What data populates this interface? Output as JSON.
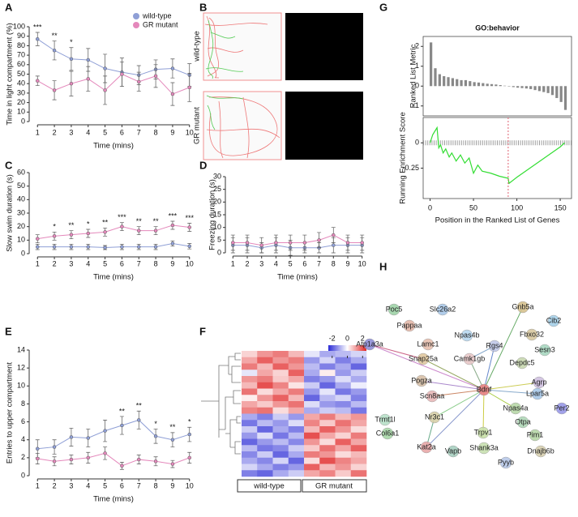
{
  "panel_labels": [
    "A",
    "B",
    "C",
    "D",
    "E",
    "F",
    "G",
    "H"
  ],
  "tracks": {
    "labels": [
      "wild-type",
      "GR mutant"
    ]
  },
  "network": {
    "nodes": [
      "Poc5",
      "Slc26a2",
      "Gnb5a",
      "Cib2",
      "Pappaa",
      "Npas4b",
      "Fbxo32",
      "Atp1a3a",
      "Lamc1",
      "Rgs4",
      "Sesn3",
      "Snap25a",
      "Camk1gb",
      "Depdc5",
      "Agrp",
      "Pogza",
      "Bdnf",
      "Lpar5a",
      "Scn8aa",
      "Npas4a",
      "Per2",
      "Trmt1l",
      "Nr3c1",
      "Otpa",
      "Col6a1",
      "Trpv1",
      "Pim1",
      "Kat2a",
      "Vapb",
      "Shank3a",
      "Dnajb6b",
      "Pyyb"
    ]
  },
  "chart_data": [
    {
      "type": "line",
      "ylabel": "Time in light compartment (%)",
      "xlabel": "Time (mins)",
      "x": [
        1,
        2,
        3,
        4,
        5,
        6,
        7,
        8,
        9,
        10
      ],
      "xlim": [
        0.7,
        10.3
      ],
      "xticks": [
        1,
        2,
        3,
        4,
        5,
        6,
        7,
        8,
        9,
        10
      ],
      "ylim": [
        0,
        100
      ],
      "yticks": [
        0,
        10,
        20,
        30,
        40,
        50,
        60,
        70,
        80,
        90,
        100
      ],
      "legend": "upper right",
      "series": [
        {
          "name": "wild-type",
          "color": "#8f9fd6",
          "values": [
            87,
            75,
            66,
            65,
            56,
            52,
            49,
            55,
            56,
            49
          ],
          "errors": [
            7,
            10,
            12,
            12,
            15,
            15,
            10,
            10,
            10,
            12
          ]
        },
        {
          "name": "GR mutant",
          "color": "#e488bb",
          "values": [
            43,
            33,
            40,
            45,
            33,
            50,
            42,
            48,
            29,
            36
          ],
          "errors": [
            5,
            10,
            13,
            13,
            15,
            13,
            10,
            12,
            12,
            15
          ]
        }
      ],
      "annotations": [
        {
          "x": 1,
          "text": "***"
        },
        {
          "x": 2,
          "text": "**"
        },
        {
          "x": 3,
          "text": "*"
        }
      ]
    },
    {
      "type": "line",
      "ylabel": "Slow swim duration (s)",
      "xlabel": "Time (mins)",
      "x": [
        1,
        2,
        3,
        4,
        5,
        6,
        7,
        8,
        9,
        10
      ],
      "xlim": [
        0.7,
        10.3
      ],
      "xticks": [
        1,
        2,
        3,
        4,
        5,
        6,
        7,
        8,
        9,
        10
      ],
      "ylim": [
        0,
        60
      ],
      "yticks": [
        0,
        10,
        20,
        30,
        40,
        50,
        60
      ],
      "series": [
        {
          "name": "wild-type",
          "color": "#8f9fd6",
          "values": [
            5,
            5,
            5,
            5,
            4.5,
            5,
            5,
            5,
            7.5,
            5.5
          ],
          "errors": [
            2,
            2,
            2,
            2,
            1.5,
            2,
            2,
            2,
            2,
            2
          ]
        },
        {
          "name": "GR mutant",
          "color": "#e488bb",
          "values": [
            11,
            13,
            14,
            15,
            16,
            20,
            17,
            17,
            21,
            19.5
          ],
          "errors": [
            3,
            3,
            3,
            3,
            3,
            3,
            3,
            3,
            3,
            3
          ]
        }
      ],
      "annotations": [
        {
          "x": 2,
          "text": "*"
        },
        {
          "x": 3,
          "text": "**"
        },
        {
          "x": 4,
          "text": "*"
        },
        {
          "x": 5,
          "text": "**"
        },
        {
          "x": 6,
          "text": "***"
        },
        {
          "x": 7,
          "text": "**"
        },
        {
          "x": 8,
          "text": "**"
        },
        {
          "x": 9,
          "text": "***"
        },
        {
          "x": 10,
          "text": "***"
        }
      ]
    },
    {
      "type": "line",
      "ylabel": "Freezing duration (s)",
      "xlabel": "Time (mins)",
      "x": [
        1,
        2,
        3,
        4,
        5,
        6,
        7,
        8,
        9,
        10
      ],
      "xlim": [
        0.7,
        10.3
      ],
      "xticks": [
        1,
        2,
        3,
        4,
        5,
        6,
        7,
        8,
        9,
        10
      ],
      "ylim": [
        0,
        30
      ],
      "yticks": [
        0,
        5,
        10,
        15,
        20,
        25,
        30
      ],
      "series": [
        {
          "name": "wild-type",
          "color": "#8f9fd6",
          "values": [
            3,
            3,
            2,
            3,
            2,
            2,
            2,
            3,
            3,
            3
          ],
          "errors": [
            3,
            3,
            2,
            3,
            3,
            2,
            2,
            3,
            3,
            3
          ]
        },
        {
          "name": "GR mutant",
          "color": "#e488bb",
          "values": [
            4,
            4,
            3,
            4,
            4,
            4,
            5,
            7,
            4,
            4
          ],
          "errors": [
            3,
            3,
            3,
            3,
            3,
            3,
            3,
            3,
            3,
            3
          ]
        }
      ],
      "annotations": []
    },
    {
      "type": "line",
      "ylabel": "Entries to upper compartment",
      "xlabel": "Time (mins)",
      "x": [
        1,
        2,
        3,
        4,
        5,
        6,
        7,
        8,
        9,
        10
      ],
      "xlim": [
        0.7,
        10.3
      ],
      "xticks": [
        1,
        2,
        3,
        4,
        5,
        6,
        7,
        8,
        9,
        10
      ],
      "ylim": [
        0,
        14
      ],
      "yticks": [
        0,
        2,
        4,
        6,
        8,
        10,
        12,
        14
      ],
      "series": [
        {
          "name": "wild-type",
          "color": "#8f9fd6",
          "values": [
            3,
            3.2,
            4.3,
            4.2,
            5,
            5.6,
            6.2,
            4.4,
            4,
            4.6
          ],
          "errors": [
            1,
            0.8,
            1,
            1,
            1.2,
            1,
            1,
            0.8,
            0.8,
            0.8
          ]
        },
        {
          "name": "GR mutant",
          "color": "#e488bb",
          "values": [
            1.9,
            1.6,
            1.8,
            2,
            2.5,
            1.1,
            1.8,
            1.6,
            1.3,
            2
          ],
          "errors": [
            0.6,
            0.5,
            0.5,
            0.6,
            0.7,
            0.4,
            0.5,
            0.5,
            0.4,
            0.6
          ]
        }
      ],
      "annotations": [
        {
          "x": 6,
          "text": "**"
        },
        {
          "x": 7,
          "text": "**"
        },
        {
          "x": 8,
          "text": "*"
        },
        {
          "x": 9,
          "text": "**"
        },
        {
          "x": 10,
          "text": "*"
        }
      ]
    },
    {
      "type": "bar",
      "title": "GO:behavior",
      "ylabel": "Ranked List Metric",
      "color": "#888888",
      "x": [
        1,
        6,
        11,
        16,
        21,
        26,
        31,
        36,
        41,
        46,
        51,
        56,
        61,
        66,
        71,
        76,
        81,
        86,
        91,
        96,
        101,
        106,
        111,
        116,
        121,
        126,
        131,
        136,
        141,
        146,
        151,
        156
      ],
      "values": [
        2.2,
        0.9,
        0.6,
        0.5,
        0.45,
        0.4,
        0.35,
        0.3,
        0.3,
        0.25,
        0.2,
        0.18,
        0.15,
        0.12,
        0.1,
        0.08,
        0.05,
        0.02,
        -0.02,
        -0.05,
        -0.08,
        -0.1,
        -0.12,
        -0.15,
        -0.2,
        -0.25,
        -0.3,
        -0.35,
        -0.45,
        -0.6,
        -0.8,
        -1.2
      ],
      "xlim": [
        -8,
        163
      ],
      "ylim": [
        -1.5,
        2.5
      ],
      "yticks": [
        -1,
        0,
        1,
        2
      ]
    },
    {
      "type": "line",
      "ylabel": "Running Enrichment Score",
      "xlabel": "Position in the Ranked List of Genes",
      "x": [
        0,
        3,
        8,
        10,
        12,
        15,
        18,
        22,
        25,
        30,
        35,
        40,
        45,
        50,
        55,
        60,
        70,
        80,
        90,
        91,
        100,
        110,
        120,
        130,
        140,
        150,
        155
      ],
      "series": [
        {
          "name": null,
          "color": "#33dd33",
          "values": [
            0,
            0.08,
            0.15,
            -0.05,
            -0.02,
            -0.1,
            -0.06,
            -0.14,
            -0.1,
            -0.18,
            -0.12,
            -0.2,
            -0.15,
            -0.3,
            -0.22,
            -0.28,
            -0.3,
            -0.33,
            -0.35,
            -0.4,
            -0.34,
            -0.28,
            -0.22,
            -0.16,
            -0.1,
            -0.04,
            0
          ]
        }
      ],
      "vline_x": 90,
      "xlim": [
        -8,
        163
      ],
      "xticks": [
        0,
        50,
        100,
        150
      ],
      "ylim": [
        -0.55,
        0.25
      ],
      "yticks": [
        0,
        -0.25
      ]
    },
    {
      "type": "heatmap",
      "groups": [
        "wild-type",
        "GR mutant"
      ],
      "clim": [
        -2.5,
        2.5
      ],
      "colorbar_ticks": [
        -2,
        0,
        2
      ],
      "values": [
        [
          0.5,
          1.2,
          1.5,
          0.8,
          -0.3,
          -1,
          -0.8,
          -0.5
        ],
        [
          1,
          1.8,
          1.2,
          1.5,
          -1.2,
          -0.5,
          -1.5,
          -1
        ],
        [
          1.5,
          0.8,
          1.8,
          1.2,
          -0.8,
          -1.5,
          -1,
          -1.8
        ],
        [
          -0.3,
          1,
          0.5,
          1.8,
          -1,
          0.2,
          -1.2,
          -0.6
        ],
        [
          1.2,
          1.5,
          0.6,
          1,
          -1.5,
          -1.2,
          -0.4,
          -1
        ],
        [
          0.8,
          2,
          1.4,
          0.3,
          -0.6,
          -1.8,
          -1,
          -0.2
        ],
        [
          1.6,
          0.4,
          1,
          1.5,
          -1.2,
          -0.3,
          -1.6,
          -1.2
        ],
        [
          0.2,
          1.2,
          1.8,
          0.8,
          -1.8,
          -0.8,
          -0.5,
          -1.5
        ],
        [
          1,
          0.6,
          1.2,
          1.6,
          -0.4,
          -1.2,
          -1.4,
          -0.8
        ],
        [
          1.4,
          1.6,
          0.4,
          1,
          -1,
          -0.6,
          -0.8,
          -1.6
        ],
        [
          -1,
          -1.5,
          -0.6,
          -1.2,
          1,
          1.5,
          0.8,
          1.2
        ],
        [
          -1.6,
          -0.8,
          -1.2,
          -0.4,
          1.4,
          0.6,
          1.6,
          1
        ],
        [
          -0.6,
          -1.8,
          -1,
          -1.5,
          0.8,
          1.8,
          1.2,
          0.4
        ],
        [
          -1.2,
          -0.4,
          -1.6,
          -0.8,
          2,
          1,
          0.5,
          1.5
        ],
        [
          -1.8,
          -1.2,
          -0.8,
          -1.4,
          1.2,
          0.4,
          1.8,
          1
        ],
        [
          -0.8,
          -1.6,
          -1.4,
          -0.6,
          0.6,
          1.6,
          1,
          1.8
        ],
        [
          -1.4,
          -0.6,
          -1.8,
          -1,
          1.5,
          1.2,
          0.4,
          0.8
        ],
        [
          -1,
          -1.4,
          -0.5,
          -1.8,
          0.4,
          2,
          1.4,
          1
        ],
        [
          -0.5,
          -1,
          -1.5,
          -1.2,
          1.8,
          0.8,
          1.2,
          0.5
        ],
        [
          -1.5,
          -1.8,
          -1,
          -0.6,
          1,
          1.4,
          0.6,
          1.6
        ]
      ]
    }
  ]
}
